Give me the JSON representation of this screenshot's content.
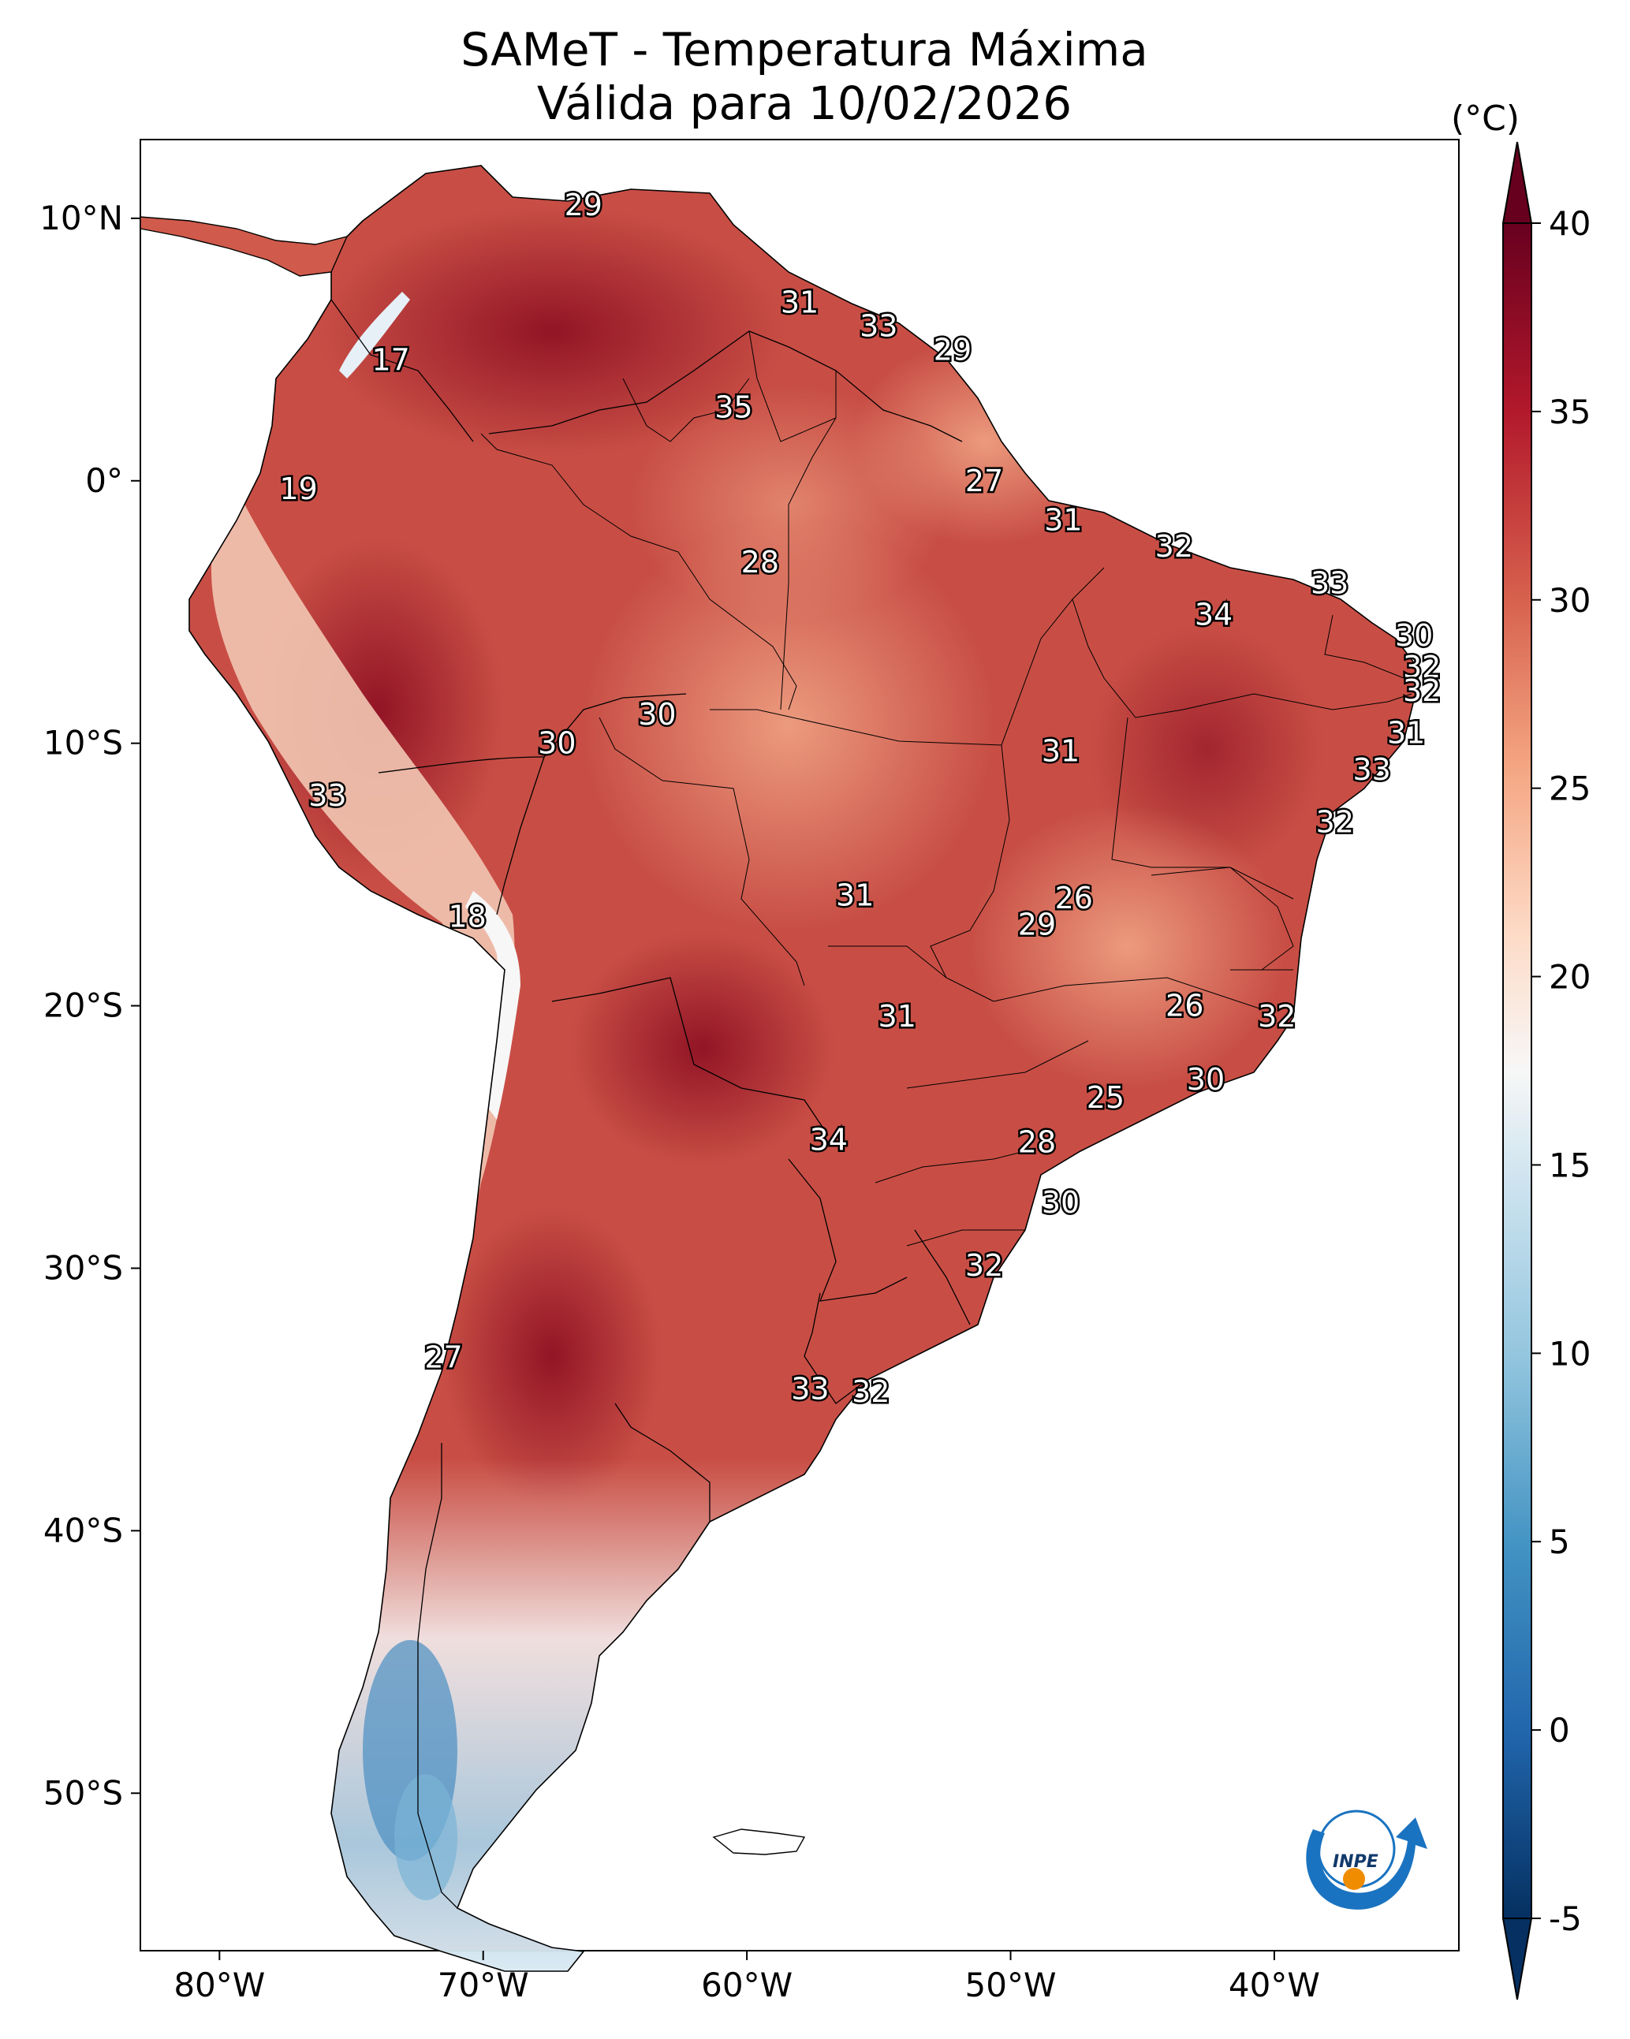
{
  "title": {
    "line1": "SAMeT - Temperatura Máxima",
    "line2": "Válida para 10/02/2026"
  },
  "map": {
    "lon_range": [
      -83,
      -33
    ],
    "lat_range": [
      -56,
      13
    ],
    "lat_ticks": [
      {
        "value": 10,
        "label": "10°N"
      },
      {
        "value": 0,
        "label": "0°"
      },
      {
        "value": -10,
        "label": "10°S"
      },
      {
        "value": -20,
        "label": "20°S"
      },
      {
        "value": -30,
        "label": "30°S"
      },
      {
        "value": -40,
        "label": "40°S"
      },
      {
        "value": -50,
        "label": "50°S"
      }
    ],
    "lon_ticks": [
      {
        "value": -80,
        "label": "80°W"
      },
      {
        "value": -70,
        "label": "70°W"
      },
      {
        "value": -60,
        "label": "60°W"
      },
      {
        "value": -50,
        "label": "50°W"
      },
      {
        "value": -40,
        "label": "40°W"
      }
    ],
    "temperature_labels": [
      {
        "lon": -66.2,
        "lat": 10.5,
        "text": "29"
      },
      {
        "lon": -58.0,
        "lat": 6.8,
        "text": "31"
      },
      {
        "lon": -55.0,
        "lat": 5.9,
        "text": "33"
      },
      {
        "lon": -52.2,
        "lat": 5.0,
        "text": "29"
      },
      {
        "lon": -73.5,
        "lat": 4.6,
        "text": "17"
      },
      {
        "lon": -60.5,
        "lat": 2.8,
        "text": "35"
      },
      {
        "lon": -51.0,
        "lat": 0.0,
        "text": "27"
      },
      {
        "lon": -77.0,
        "lat": -0.3,
        "text": "19"
      },
      {
        "lon": -48.0,
        "lat": -1.5,
        "text": "31"
      },
      {
        "lon": -43.8,
        "lat": -2.5,
        "text": "32"
      },
      {
        "lon": -59.5,
        "lat": -3.1,
        "text": "28"
      },
      {
        "lon": -37.9,
        "lat": -3.9,
        "text": "33"
      },
      {
        "lon": -42.3,
        "lat": -5.1,
        "text": "34"
      },
      {
        "lon": -34.7,
        "lat": -5.9,
        "text": "30"
      },
      {
        "lon": -34.4,
        "lat": -7.1,
        "text": "32"
      },
      {
        "lon": -34.4,
        "lat": -8.0,
        "text": "32"
      },
      {
        "lon": -63.4,
        "lat": -8.9,
        "text": "30"
      },
      {
        "lon": -35.0,
        "lat": -9.6,
        "text": "31"
      },
      {
        "lon": -67.2,
        "lat": -10.0,
        "text": "30"
      },
      {
        "lon": -48.1,
        "lat": -10.3,
        "text": "31"
      },
      {
        "lon": -36.3,
        "lat": -11.0,
        "text": "33"
      },
      {
        "lon": -75.9,
        "lat": -12.0,
        "text": "33"
      },
      {
        "lon": -37.7,
        "lat": -13.0,
        "text": "32"
      },
      {
        "lon": -55.9,
        "lat": -15.8,
        "text": "31"
      },
      {
        "lon": -47.6,
        "lat": -15.9,
        "text": "26"
      },
      {
        "lon": -49.0,
        "lat": -16.9,
        "text": "29"
      },
      {
        "lon": -70.6,
        "lat": -16.6,
        "text": "18"
      },
      {
        "lon": -43.4,
        "lat": -20.0,
        "text": "26"
      },
      {
        "lon": -54.3,
        "lat": -20.4,
        "text": "31"
      },
      {
        "lon": -39.9,
        "lat": -20.4,
        "text": "32"
      },
      {
        "lon": -42.6,
        "lat": -22.8,
        "text": "30"
      },
      {
        "lon": -46.4,
        "lat": -23.5,
        "text": "25"
      },
      {
        "lon": -56.9,
        "lat": -25.1,
        "text": "34"
      },
      {
        "lon": -49.0,
        "lat": -25.2,
        "text": "28"
      },
      {
        "lon": -48.1,
        "lat": -27.5,
        "text": "30"
      },
      {
        "lon": -51.0,
        "lat": -29.9,
        "text": "32"
      },
      {
        "lon": -71.5,
        "lat": -33.4,
        "text": "27"
      },
      {
        "lon": -57.6,
        "lat": -34.6,
        "text": "33"
      },
      {
        "lon": -55.3,
        "lat": -34.7,
        "text": "32"
      }
    ],
    "logo_text": "INPE"
  },
  "colorbar": {
    "unit": "(°C)",
    "ticks": [
      {
        "value": 40,
        "label": "40"
      },
      {
        "value": 35,
        "label": "35"
      },
      {
        "value": 30,
        "label": "30"
      },
      {
        "value": 25,
        "label": "25"
      },
      {
        "value": 20,
        "label": "20"
      },
      {
        "value": 15,
        "label": "15"
      },
      {
        "value": 10,
        "label": "10"
      },
      {
        "value": 5,
        "label": "5"
      },
      {
        "value": 0,
        "label": "0"
      },
      {
        "value": -5,
        "label": "-5"
      }
    ],
    "range": [
      -5,
      40
    ],
    "colors": [
      "#053061",
      "#2166ac",
      "#4393c3",
      "#92c5de",
      "#d1e5f0",
      "#f7f7f7",
      "#fddbc7",
      "#f4a582",
      "#d6604d",
      "#b2182b",
      "#67001f"
    ]
  }
}
